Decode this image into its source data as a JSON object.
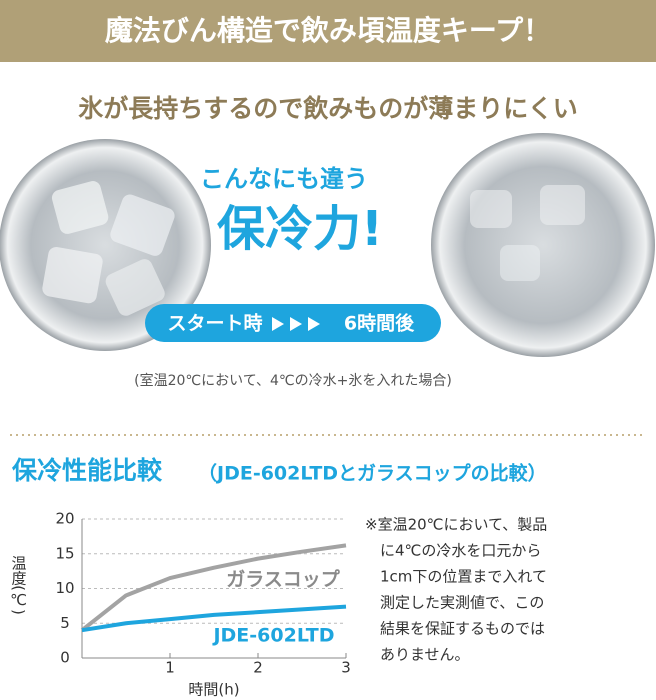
{
  "header": {
    "title": "魔法びん構造で飲み頃温度キープ！"
  },
  "subtitle": "氷が長持ちするので飲みものが薄まりにくい",
  "photo": {
    "caption_top": "こんなにも違う",
    "caption_main": "保冷力!",
    "start": "スタート時",
    "end": "6時間後",
    "note": "(室温20℃において、4℃の冷水+氷を入れた場合)"
  },
  "chart_data": {
    "type": "line",
    "title": "保冷性能比較",
    "subtitle": "（JDE-602LTDとガラスコップの比較）",
    "x_label": "時間(h)",
    "y_label": "温度(℃)",
    "x": [
      0,
      0.5,
      1,
      1.5,
      2,
      2.5,
      3
    ],
    "series": [
      {
        "name": "ガラスコップ",
        "color": "#a3a3a3",
        "values": [
          4,
          9,
          11.5,
          13,
          14.3,
          15.3,
          16.2
        ]
      },
      {
        "name": "JDE-602LTD",
        "color": "#1ea5de",
        "values": [
          4,
          5,
          5.6,
          6.2,
          6.6,
          7,
          7.4
        ]
      }
    ],
    "xlim": [
      0,
      3
    ],
    "ylim": [
      0,
      20
    ],
    "xticks": [
      1,
      2,
      3
    ],
    "yticks": [
      0,
      5,
      10,
      15,
      20
    ],
    "grid": true
  },
  "note": [
    "※室温20℃において、製品",
    "に4℃の冷水を口元から",
    "1cm下の位置まで入れて",
    "測定した実測値で、この",
    "結果を保証するものでは",
    "ありません。"
  ]
}
